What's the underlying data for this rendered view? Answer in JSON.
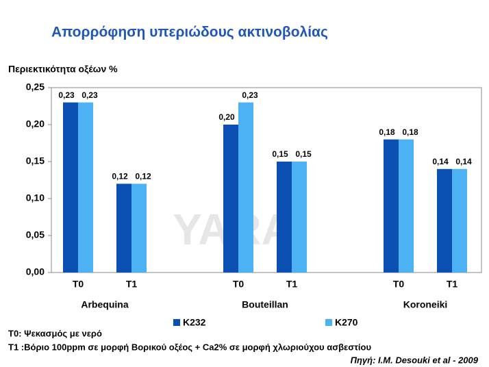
{
  "chart_data": {
    "type": "bar",
    "title": "Απορρόφηση υπεριώδους ακτινοβολίας",
    "y_label": "Περιεκτικότητα οξέων %",
    "categories": [
      "T0",
      "T1",
      null,
      "T0",
      "T1",
      null,
      "T0",
      "T1"
    ],
    "group_labels": [
      "Arbequina",
      "Bouteillan",
      "Koroneiki"
    ],
    "series": [
      {
        "name": "K232",
        "color": "#0b4fb3",
        "values": [
          0.23,
          0.12,
          null,
          0.2,
          0.15,
          null,
          0.18,
          0.14
        ],
        "value_labels": [
          "0,23",
          "0,12",
          null,
          "0,20",
          "0,15",
          null,
          "0,18",
          "0,14"
        ]
      },
      {
        "name": "K270",
        "color": "#4db2f4",
        "values": [
          0.23,
          0.12,
          null,
          0.23,
          0.15,
          null,
          0.18,
          0.14
        ],
        "value_labels": [
          "0,23",
          "0,12",
          null,
          "0,23",
          "0,15",
          null,
          "0,18",
          "0,14"
        ]
      }
    ],
    "ylim": [
      0,
      0.25
    ],
    "yticks": [
      {
        "value": 0,
        "label": "0,00"
      },
      {
        "value": 0.05,
        "label": "0,05"
      },
      {
        "value": 0.1,
        "label": "0,10"
      },
      {
        "value": 0.15,
        "label": "0,15"
      },
      {
        "value": 0.2,
        "label": "0,20"
      },
      {
        "value": 0.25,
        "label": "0,25"
      }
    ],
    "grid": false,
    "watermark": "YARA",
    "notes": [
      "T0: Ψεκασμός με νερό",
      "T1 :Βόριο 100ppm σε μορφή Βορικού οξέος + Ca2% σε μορφή χλωριούχου ασβεστίου"
    ],
    "source": "Πηγή:  I.M. Desouki et al - 2009"
  }
}
